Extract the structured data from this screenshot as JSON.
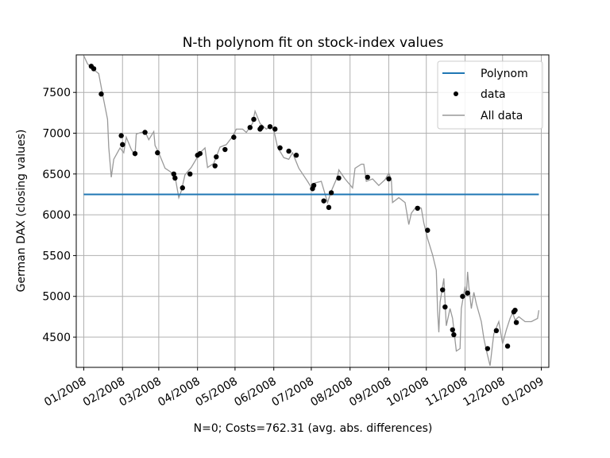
{
  "chart_data": {
    "type": "line",
    "title": "N-th polynom fit on stock-index values",
    "xlabel": "N=0; Costs=762.31 (avg. abs. differences)",
    "ylabel": "German DAX (closing values)",
    "xlim": [
      "2007-12-26",
      "2009-01-07"
    ],
    "ylim": [
      4130,
      7960
    ],
    "grid": true,
    "legend_placement": "upper right",
    "x_ticks": [
      {
        "date": "2008-01-01",
        "label": "01/2008"
      },
      {
        "date": "2008-02-01",
        "label": "02/2008"
      },
      {
        "date": "2008-03-01",
        "label": "03/2008"
      },
      {
        "date": "2008-04-01",
        "label": "04/2008"
      },
      {
        "date": "2008-05-01",
        "label": "05/2008"
      },
      {
        "date": "2008-06-01",
        "label": "06/2008"
      },
      {
        "date": "2008-07-01",
        "label": "07/2008"
      },
      {
        "date": "2008-08-01",
        "label": "08/2008"
      },
      {
        "date": "2008-09-01",
        "label": "09/2008"
      },
      {
        "date": "2008-10-01",
        "label": "10/2008"
      },
      {
        "date": "2008-11-01",
        "label": "11/2008"
      },
      {
        "date": "2008-12-01",
        "label": "12/2008"
      },
      {
        "date": "2009-01-01",
        "label": "01/2009"
      }
    ],
    "y_ticks": [
      {
        "value": 4500,
        "label": "4500"
      },
      {
        "value": 5000,
        "label": "5000"
      },
      {
        "value": 5500,
        "label": "5500"
      },
      {
        "value": 6000,
        "label": "6000"
      },
      {
        "value": 6500,
        "label": "6500"
      },
      {
        "value": 7000,
        "label": "7000"
      },
      {
        "value": 7500,
        "label": "7500"
      }
    ],
    "series": [
      {
        "name": "Polynom",
        "kind": "line",
        "color": "#1f77b4",
        "points": [
          [
            "2008-01-01",
            6250
          ],
          [
            "2008-12-30",
            6250
          ]
        ]
      },
      {
        "name": "data",
        "kind": "scatter",
        "color": "#000000",
        "points": [
          [
            "2008-01-07",
            7820
          ],
          [
            "2008-01-09",
            7790
          ],
          [
            "2008-01-15",
            7480
          ],
          [
            "2008-01-31",
            6970
          ],
          [
            "2008-02-01",
            6860
          ],
          [
            "2008-02-11",
            6750
          ],
          [
            "2008-02-19",
            7010
          ],
          [
            "2008-02-29",
            6760
          ],
          [
            "2008-03-13",
            6500
          ],
          [
            "2008-03-14",
            6450
          ],
          [
            "2008-03-20",
            6330
          ],
          [
            "2008-03-26",
            6500
          ],
          [
            "2008-04-01",
            6730
          ],
          [
            "2008-04-03",
            6750
          ],
          [
            "2008-04-15",
            6600
          ],
          [
            "2008-04-16",
            6710
          ],
          [
            "2008-04-23",
            6800
          ],
          [
            "2008-04-30",
            6950
          ],
          [
            "2008-05-13",
            7070
          ],
          [
            "2008-05-16",
            7170
          ],
          [
            "2008-05-21",
            7050
          ],
          [
            "2008-05-22",
            7070
          ],
          [
            "2008-05-29",
            7080
          ],
          [
            "2008-06-02",
            7050
          ],
          [
            "2008-06-06",
            6820
          ],
          [
            "2008-06-13",
            6780
          ],
          [
            "2008-06-19",
            6730
          ],
          [
            "2008-07-02",
            6320
          ],
          [
            "2008-07-03",
            6360
          ],
          [
            "2008-07-11",
            6170
          ],
          [
            "2008-07-15",
            6090
          ],
          [
            "2008-07-17",
            6270
          ],
          [
            "2008-07-23",
            6450
          ],
          [
            "2008-08-15",
            6460
          ],
          [
            "2008-09-01",
            6440
          ],
          [
            "2008-09-24",
            6080
          ],
          [
            "2008-10-02",
            5810
          ],
          [
            "2008-10-14",
            5080
          ],
          [
            "2008-10-16",
            4870
          ],
          [
            "2008-10-22",
            4590
          ],
          [
            "2008-10-23",
            4530
          ],
          [
            "2008-10-30",
            5000
          ],
          [
            "2008-11-03",
            5040
          ],
          [
            "2008-11-19",
            4360
          ],
          [
            "2008-11-26",
            4580
          ],
          [
            "2008-12-05",
            4390
          ],
          [
            "2008-12-10",
            4810
          ],
          [
            "2008-12-11",
            4830
          ],
          [
            "2008-12-12",
            4680
          ]
        ]
      },
      {
        "name": "All data",
        "kind": "line",
        "color": "#999999",
        "points": [
          [
            "2008-01-01",
            7950
          ],
          [
            "2008-01-04",
            7850
          ],
          [
            "2008-01-08",
            7790
          ],
          [
            "2008-01-13",
            7730
          ],
          [
            "2008-01-16",
            7480
          ],
          [
            "2008-01-20",
            7170
          ],
          [
            "2008-01-21",
            6830
          ],
          [
            "2008-01-23",
            6460
          ],
          [
            "2008-01-25",
            6680
          ],
          [
            "2008-01-30",
            6820
          ],
          [
            "2008-02-02",
            6760
          ],
          [
            "2008-02-04",
            6950
          ],
          [
            "2008-02-08",
            6800
          ],
          [
            "2008-02-11",
            6730
          ],
          [
            "2008-02-12",
            6990
          ],
          [
            "2008-02-16",
            7010
          ],
          [
            "2008-02-19",
            7020
          ],
          [
            "2008-02-22",
            6920
          ],
          [
            "2008-02-26",
            7020
          ],
          [
            "2008-02-27",
            6850
          ],
          [
            "2008-03-01",
            6760
          ],
          [
            "2008-03-06",
            6570
          ],
          [
            "2008-03-10",
            6530
          ],
          [
            "2008-03-14",
            6470
          ],
          [
            "2008-03-17",
            6210
          ],
          [
            "2008-03-19",
            6290
          ],
          [
            "2008-03-22",
            6490
          ],
          [
            "2008-03-27",
            6580
          ],
          [
            "2008-04-03",
            6760
          ],
          [
            "2008-04-07",
            6820
          ],
          [
            "2008-04-09",
            6580
          ],
          [
            "2008-04-14",
            6630
          ],
          [
            "2008-04-19",
            6830
          ],
          [
            "2008-04-24",
            6860
          ],
          [
            "2008-04-29",
            6960
          ],
          [
            "2008-05-02",
            7050
          ],
          [
            "2008-05-07",
            7050
          ],
          [
            "2008-05-10",
            7010
          ],
          [
            "2008-05-15",
            7120
          ],
          [
            "2008-05-17",
            7270
          ],
          [
            "2008-05-21",
            7120
          ],
          [
            "2008-05-26",
            7050
          ],
          [
            "2008-05-30",
            7090
          ],
          [
            "2008-06-01",
            7040
          ],
          [
            "2008-06-04",
            6830
          ],
          [
            "2008-06-09",
            6700
          ],
          [
            "2008-06-13",
            6680
          ],
          [
            "2008-06-16",
            6760
          ],
          [
            "2008-06-21",
            6570
          ],
          [
            "2008-06-28",
            6410
          ],
          [
            "2008-07-02",
            6310
          ],
          [
            "2008-07-04",
            6390
          ],
          [
            "2008-07-09",
            6410
          ],
          [
            "2008-07-14",
            6150
          ],
          [
            "2008-07-17",
            6290
          ],
          [
            "2008-07-22",
            6470
          ],
          [
            "2008-07-23",
            6550
          ],
          [
            "2008-07-28",
            6440
          ],
          [
            "2008-08-03",
            6330
          ],
          [
            "2008-08-05",
            6570
          ],
          [
            "2008-08-10",
            6620
          ],
          [
            "2008-08-12",
            6620
          ],
          [
            "2008-08-14",
            6410
          ],
          [
            "2008-08-19",
            6440
          ],
          [
            "2008-08-24",
            6360
          ],
          [
            "2008-08-29",
            6430
          ],
          [
            "2008-09-01",
            6510
          ],
          [
            "2008-09-03",
            6430
          ],
          [
            "2008-09-04",
            6150
          ],
          [
            "2008-09-09",
            6210
          ],
          [
            "2008-09-14",
            6150
          ],
          [
            "2008-09-17",
            5880
          ],
          [
            "2008-09-19",
            6020
          ],
          [
            "2008-09-23",
            6100
          ],
          [
            "2008-09-27",
            6080
          ],
          [
            "2008-09-29",
            5900
          ],
          [
            "2008-10-02",
            5710
          ],
          [
            "2008-10-06",
            5510
          ],
          [
            "2008-10-09",
            5320
          ],
          [
            "2008-10-10",
            4830
          ],
          [
            "2008-10-11",
            4560
          ],
          [
            "2008-10-12",
            4930
          ],
          [
            "2008-10-15",
            5220
          ],
          [
            "2008-10-17",
            4640
          ],
          [
            "2008-10-20",
            4850
          ],
          [
            "2008-10-22",
            4730
          ],
          [
            "2008-10-25",
            4330
          ],
          [
            "2008-10-28",
            4360
          ],
          [
            "2008-10-29",
            4850
          ],
          [
            "2008-11-01",
            5120
          ],
          [
            "2008-11-02",
            5010
          ],
          [
            "2008-11-03",
            5300
          ],
          [
            "2008-11-04",
            5120
          ],
          [
            "2008-11-06",
            4850
          ],
          [
            "2008-11-08",
            5050
          ],
          [
            "2008-11-10",
            4910
          ],
          [
            "2008-11-14",
            4690
          ],
          [
            "2008-11-16",
            4490
          ],
          [
            "2008-11-18",
            4340
          ],
          [
            "2008-11-21",
            4150
          ],
          [
            "2008-11-24",
            4540
          ],
          [
            "2008-11-28",
            4690
          ],
          [
            "2008-12-01",
            4420
          ],
          [
            "2008-12-04",
            4590
          ],
          [
            "2008-12-07",
            4730
          ],
          [
            "2008-12-09",
            4800
          ],
          [
            "2008-12-11",
            4710
          ],
          [
            "2008-12-14",
            4750
          ],
          [
            "2008-12-19",
            4690
          ],
          [
            "2008-12-24",
            4690
          ],
          [
            "2008-12-29",
            4730
          ],
          [
            "2008-12-30",
            4830
          ]
        ]
      }
    ]
  }
}
